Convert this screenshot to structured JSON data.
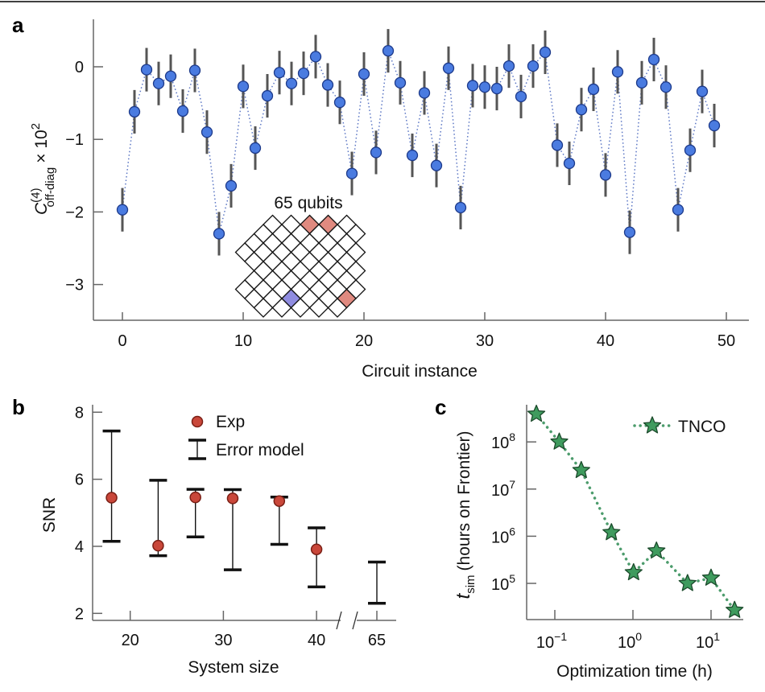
{
  "chart_data": [
    {
      "panel_label": "a",
      "type": "scatter",
      "xlabel": "Circuit instance",
      "ylabel": {
        "symbol": "C",
        "superscript": "(4)",
        "subscript": "off-diag",
        "multiplier": "× 10",
        "multiplier_exp": "2"
      },
      "xlim": [
        -2.4,
        51.9
      ],
      "ylim": [
        -3.49,
        0.65
      ],
      "xticks": [
        "0",
        "10",
        "20",
        "30",
        "40",
        "50"
      ],
      "yticks": [
        "0",
        "−1",
        "−2",
        "−3"
      ],
      "connector": "dotted",
      "inset": {
        "label": "65 qubits"
      },
      "x": [
        0,
        1,
        2,
        3,
        4,
        5,
        6,
        7,
        8,
        9,
        10,
        11,
        12,
        13,
        14,
        15,
        16,
        17,
        18,
        19,
        20,
        21,
        22,
        23,
        24,
        25,
        26,
        27,
        28,
        29,
        30,
        31,
        32,
        33,
        34,
        35,
        36,
        37,
        38,
        39,
        40,
        41,
        42,
        43,
        44,
        45,
        46,
        47,
        48,
        49
      ],
      "y": [
        -1.97,
        -0.62,
        -0.04,
        -0.23,
        -0.13,
        -0.61,
        -0.05,
        -0.9,
        -2.3,
        -1.64,
        -0.27,
        -1.12,
        -0.4,
        -0.08,
        -0.23,
        -0.09,
        0.14,
        -0.25,
        -0.49,
        -1.47,
        -0.1,
        -1.18,
        0.22,
        -0.22,
        -1.22,
        -0.36,
        -1.36,
        -0.02,
        -1.94,
        -0.26,
        -0.28,
        -0.3,
        0.01,
        -0.41,
        0.01,
        0.2,
        -1.08,
        -1.33,
        -0.59,
        -0.31,
        -1.49,
        -0.07,
        -2.28,
        -0.22,
        0.1,
        -0.28,
        -1.97,
        -1.15,
        -0.34,
        -0.81
      ],
      "error": 0.3,
      "colors": {
        "marker": "#4a7be0",
        "marker_edge": "#1d3a8a",
        "errorbar": "#555555",
        "line": "#5b76c4"
      }
    },
    {
      "panel_label": "b",
      "type": "scatter",
      "xlabel": "System size",
      "ylabel": "SNR",
      "ylim": [
        1.8,
        8.23
      ],
      "xticks": [
        "20",
        "30",
        "40",
        "65"
      ],
      "yticks": [
        "2",
        "4",
        "6",
        "8"
      ],
      "x_axis_break": "between 40 and 65",
      "legend": {
        "placement": "top-center",
        "entries": [
          "Exp",
          "Error model"
        ]
      },
      "series": [
        {
          "name": "Exp",
          "x": [
            18,
            23,
            27,
            31,
            36,
            40
          ],
          "y": [
            5.45,
            4.02,
            5.46,
            5.43,
            5.35,
            3.91
          ]
        },
        {
          "name": "Error model",
          "x": [
            18,
            23,
            27,
            31,
            36,
            40,
            65
          ],
          "low": [
            4.15,
            3.72,
            4.28,
            3.3,
            4.06,
            2.79,
            2.3
          ],
          "high": [
            7.44,
            5.97,
            5.7,
            5.69,
            5.47,
            4.55,
            3.53
          ]
        }
      ],
      "colors": {
        "marker": "#c9473a",
        "marker_edge": "#7a1f15",
        "errorbar": "#111111"
      }
    },
    {
      "panel_label": "c",
      "type": "line",
      "xlabel": "Optimization time (h)",
      "ylabel": {
        "symbol": "t",
        "subscript": "sim",
        "rest": "(hours on Frontier)"
      },
      "xscale": "log",
      "yscale": "log",
      "xlim": [
        0.045,
        26
      ],
      "ylim": [
        17000,
        620000000
      ],
      "xticks": [
        {
          "base": "10",
          "exp": "−1"
        },
        {
          "base": "10",
          "exp": "0"
        },
        {
          "base": "10",
          "exp": "1"
        }
      ],
      "yticks": [
        {
          "base": "10",
          "exp": "8"
        },
        {
          "base": "10",
          "exp": "7"
        },
        {
          "base": "10",
          "exp": "6"
        },
        {
          "base": "10",
          "exp": "5"
        }
      ],
      "legend": {
        "placement": "top-right",
        "entries": [
          "TNCO"
        ]
      },
      "series": [
        {
          "name": "TNCO",
          "marker": "star",
          "linestyle": "dotted",
          "x": [
            0.058,
            0.114,
            0.218,
            0.53,
            1.02,
            2.0,
            5.0,
            10,
            20
          ],
          "y": [
            390000000,
            100000000,
            25000000,
            1200000,
            170000,
            490000,
            100000,
            130000,
            27000
          ]
        }
      ],
      "colors": {
        "marker": "#3f9b5e",
        "marker_edge": "#1b4a2b",
        "line": "#4c9c6c"
      }
    }
  ]
}
